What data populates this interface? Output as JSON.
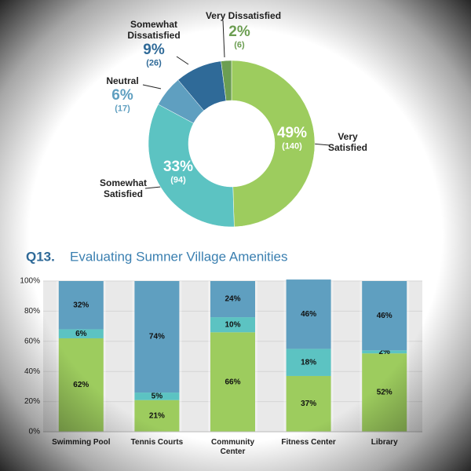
{
  "chart_data": [
    {
      "type": "donut",
      "categories": [
        "Very Satisfied",
        "Somewhat Satisfied",
        "Neutral",
        "Somewhat Dissatisfied",
        "Very Dissatisfied"
      ],
      "values": [
        49,
        33,
        6,
        9,
        2
      ],
      "value_labels": [
        "49%",
        "33%",
        "6%",
        "9%",
        "2%"
      ],
      "counts": [
        140,
        94,
        17,
        26,
        6
      ],
      "count_labels": [
        "(140)",
        "(94)",
        "(17)",
        "(26)",
        "(6)"
      ],
      "colors": [
        "#9dcc5e",
        "#5cc3c2",
        "#5f9fc0",
        "#2f6a98",
        "#6c9e52"
      ]
    },
    {
      "type": "stacked_bar",
      "question": "Q13.",
      "title": "Evaluating Sumner Village Amenities",
      "categories": [
        "Swimming Pool",
        "Tennis Courts",
        "Community Center",
        "Fitness Center",
        "Library"
      ],
      "series": [
        {
          "color": "#9dcc5e",
          "values": [
            62,
            21,
            66,
            37,
            52
          ],
          "value_labels": [
            "62%",
            "21%",
            "66%",
            "37%",
            "52%"
          ]
        },
        {
          "color": "#5cc3c2",
          "values": [
            6,
            5,
            10,
            18,
            2
          ],
          "value_labels": [
            "6%",
            "5%",
            "10%",
            "18%",
            "2%"
          ]
        },
        {
          "color": "#5f9fc0",
          "values": [
            32,
            74,
            24,
            46,
            46
          ],
          "value_labels": [
            "32%",
            "74%",
            "24%",
            "46%",
            "46%"
          ]
        }
      ],
      "ylim": [
        0,
        100
      ],
      "yticks": [
        {
          "value": 0,
          "label": "0%"
        },
        {
          "value": 20,
          "label": "20%"
        },
        {
          "value": 40,
          "label": "40%"
        },
        {
          "value": 60,
          "label": "60%"
        },
        {
          "value": 80,
          "label": "80%"
        },
        {
          "value": 100,
          "label": "100%"
        }
      ],
      "grid": true
    }
  ]
}
